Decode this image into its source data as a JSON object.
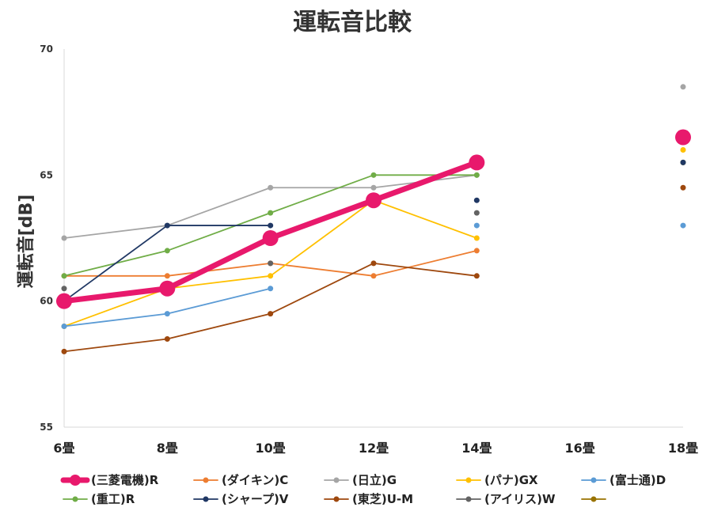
{
  "chart_data": {
    "type": "line",
    "title": "運転音比較",
    "ylabel": "運転音[dB]",
    "xlabel": "",
    "x": [
      "6畳",
      "8畳",
      "10畳",
      "12畳",
      "14畳",
      "16畳",
      "18畳"
    ],
    "ylim": [
      55,
      70
    ],
    "yticks": [
      "55",
      "60",
      "65",
      "70"
    ],
    "grid": false,
    "legend_position": "bottom",
    "series": [
      {
        "name": "(三菱電機)R",
        "color": "#e8196c",
        "emphasis": true,
        "values": [
          60,
          60.5,
          62.5,
          64,
          65.5,
          null,
          66.5
        ]
      },
      {
        "name": "(ダイキン)C",
        "color": "#ed7d31",
        "values": [
          61,
          61,
          61.5,
          61,
          62,
          null,
          65.5
        ]
      },
      {
        "name": "(日立)G",
        "color": "#a5a5a5",
        "values": [
          62.5,
          63,
          64.5,
          64.5,
          65,
          null,
          68.5
        ]
      },
      {
        "name": "(パナ)GX",
        "color": "#ffc000",
        "values": [
          59,
          60.5,
          61,
          64,
          62.5,
          null,
          66
        ]
      },
      {
        "name": "(富士通)D",
        "color": "#5b9bd5",
        "values": [
          59,
          59.5,
          60.5,
          null,
          63,
          null,
          63
        ]
      },
      {
        "name": "(重工)R",
        "color": "#70ad47",
        "values": [
          61,
          62,
          63.5,
          65,
          65,
          null,
          65.5
        ]
      },
      {
        "name": "(シャープ)V",
        "color": "#203864",
        "values": [
          60,
          63,
          63,
          null,
          64,
          null,
          65.5
        ]
      },
      {
        "name": "(東芝)U-M",
        "color": "#9e480e",
        "values": [
          58,
          58.5,
          59.5,
          61.5,
          61,
          null,
          64.5
        ]
      },
      {
        "name": "(アイリス)W",
        "color": "#636363",
        "values": [
          60.5,
          null,
          61.5,
          null,
          63.5,
          null,
          null
        ]
      },
      {
        "name": "",
        "color": "#997300",
        "values": [
          null,
          null,
          null,
          null,
          null,
          null,
          null
        ]
      }
    ]
  }
}
